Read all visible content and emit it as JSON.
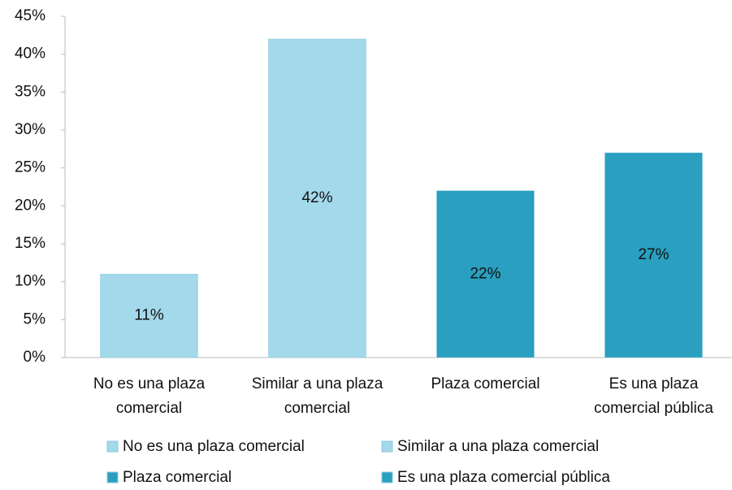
{
  "chart_data": {
    "type": "bar",
    "categories": [
      "No es una plaza comercial",
      "Similar a una plaza comercial",
      "Plaza comercial",
      "Es una plaza comercial pública"
    ],
    "series": [
      {
        "name": "No es una plaza comercial",
        "color": "#a3d9ea",
        "values": [
          11,
          null,
          null,
          null
        ],
        "value_labels": [
          "11%",
          null,
          null,
          null
        ]
      },
      {
        "name": "Similar a una plaza comercial",
        "color": "#a3d9ea",
        "values": [
          null,
          42,
          null,
          null
        ],
        "value_labels": [
          null,
          "42%",
          null,
          null
        ]
      },
      {
        "name": "Plaza comercial",
        "color": "#2a9fbf",
        "values": [
          null,
          null,
          22,
          null
        ],
        "value_labels": [
          null,
          null,
          "22%",
          null
        ]
      },
      {
        "name": "Es una plaza comercial pública",
        "color": "#2a9fbf",
        "values": [
          null,
          null,
          null,
          27
        ],
        "value_labels": [
          null,
          null,
          null,
          "27%"
        ]
      }
    ],
    "ylim": [
      0,
      45
    ],
    "yticks": [
      {
        "value": 0,
        "label": "0%"
      },
      {
        "value": 5,
        "label": "5%"
      },
      {
        "value": 10,
        "label": "10%"
      },
      {
        "value": 15,
        "label": "15%"
      },
      {
        "value": 20,
        "label": "20%"
      },
      {
        "value": 25,
        "label": "25%"
      },
      {
        "value": 30,
        "label": "30%"
      },
      {
        "value": 35,
        "label": "35%"
      },
      {
        "value": 40,
        "label": "40%"
      },
      {
        "value": 45,
        "label": "45%"
      }
    ],
    "grid": false,
    "legend": "bottom"
  }
}
